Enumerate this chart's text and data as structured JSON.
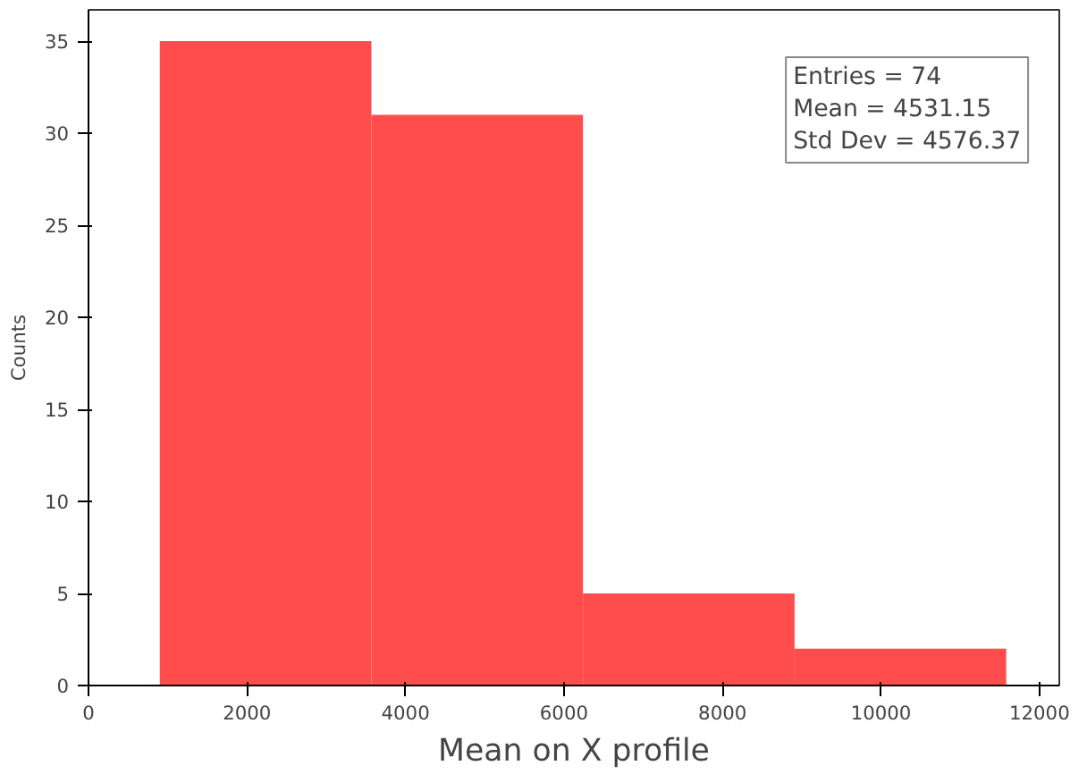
{
  "chart_data": {
    "type": "histogram",
    "xlabel": "Mean on X profile",
    "ylabel": "Counts",
    "bins": [
      900,
      3570,
      6240,
      8910,
      11580
    ],
    "values": [
      35,
      31,
      5,
      2
    ],
    "color": "#ff4c4c",
    "xlim": [
      0,
      12250
    ],
    "ylim": [
      0,
      36.7
    ],
    "xticks": [
      0,
      2000,
      4000,
      6000,
      8000,
      10000,
      12000
    ],
    "yticks": [
      0,
      5,
      10,
      15,
      20,
      25,
      30,
      35
    ],
    "grid": false,
    "annotations": [
      "Entries  = 74",
      "Mean  = 4531.15",
      "Std Dev = 4576.37"
    ]
  }
}
